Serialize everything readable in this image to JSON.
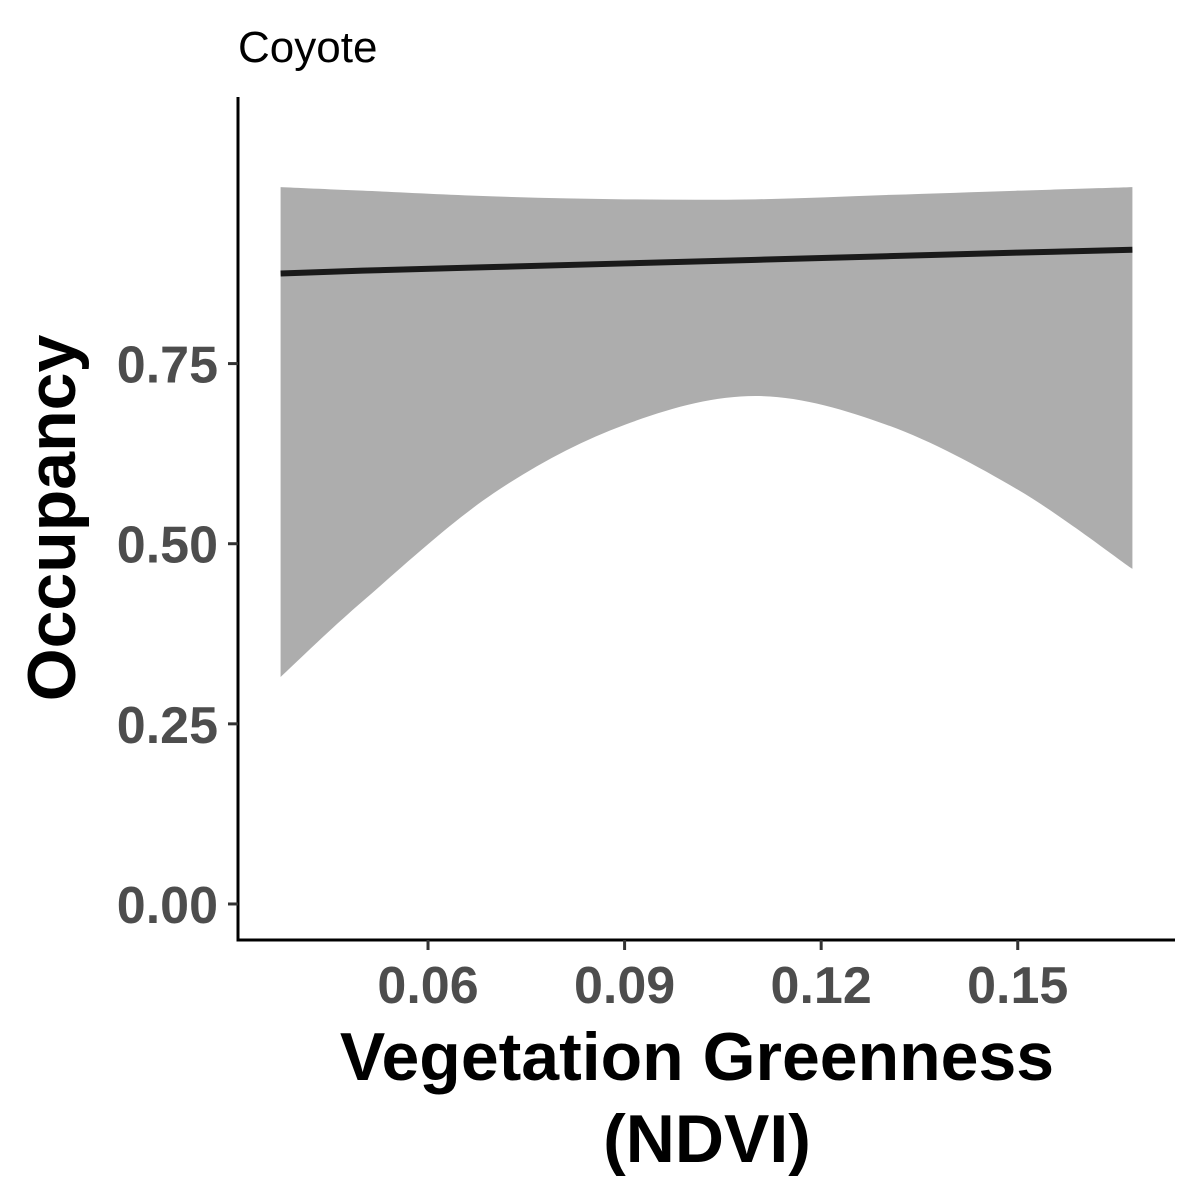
{
  "chart_data": {
    "type": "line",
    "title": "Coyote",
    "xlabel_lines": [
      "Vegetation Greenness",
      "(NDVI)"
    ],
    "ylabel": "Occupancy",
    "xlim": [
      0.031,
      0.174
    ],
    "ylim": [
      -0.05,
      1.12
    ],
    "x_ticks": [
      0.06,
      0.09,
      0.12,
      0.15
    ],
    "x_tick_labels": [
      "0.06",
      "0.09",
      "0.12",
      "0.15"
    ],
    "y_ticks": [
      0.0,
      0.25,
      0.5,
      0.75
    ],
    "y_tick_labels": [
      "0.00",
      "0.25",
      "0.50",
      "0.75"
    ],
    "grid": false,
    "legend": "none",
    "series": [
      {
        "x": [
          0.0375,
          0.05,
          0.07,
          0.09,
          0.11,
          0.13,
          0.15,
          0.1675
        ],
        "values": [
          0.875,
          0.879,
          0.884,
          0.889,
          0.894,
          0.899,
          0.904,
          0.908
        ],
        "color": "#1a1a1a",
        "band_lower": [
          0.315,
          0.42,
          0.57,
          0.665,
          0.705,
          0.665,
          0.575,
          0.465
        ],
        "band_upper": [
          0.995,
          0.99,
          0.982,
          0.978,
          0.978,
          0.984,
          0.99,
          0.995
        ],
        "band_color": "#adadad"
      }
    ]
  }
}
